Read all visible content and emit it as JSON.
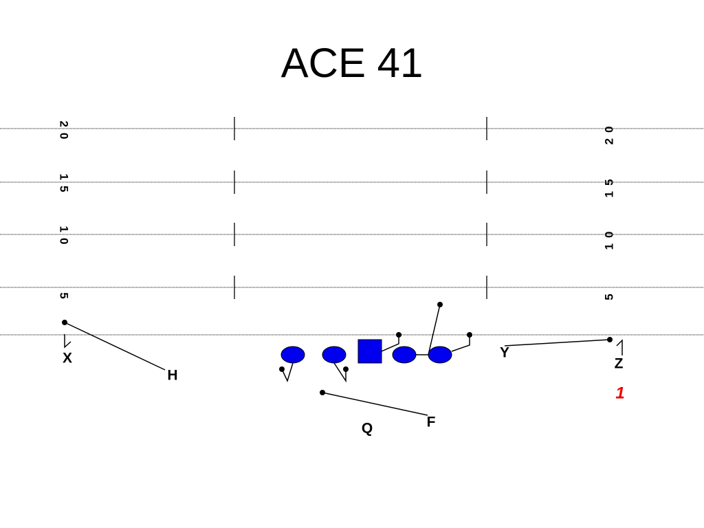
{
  "title": "ACE 41",
  "yard_numbers": [
    "20",
    "15",
    "10",
    "5"
  ],
  "players": [
    {
      "label": "X"
    },
    {
      "label": "H"
    },
    {
      "label": "Y"
    },
    {
      "label": "Z"
    },
    {
      "label": "Q"
    },
    {
      "label": "F"
    }
  ],
  "play_number": "1"
}
